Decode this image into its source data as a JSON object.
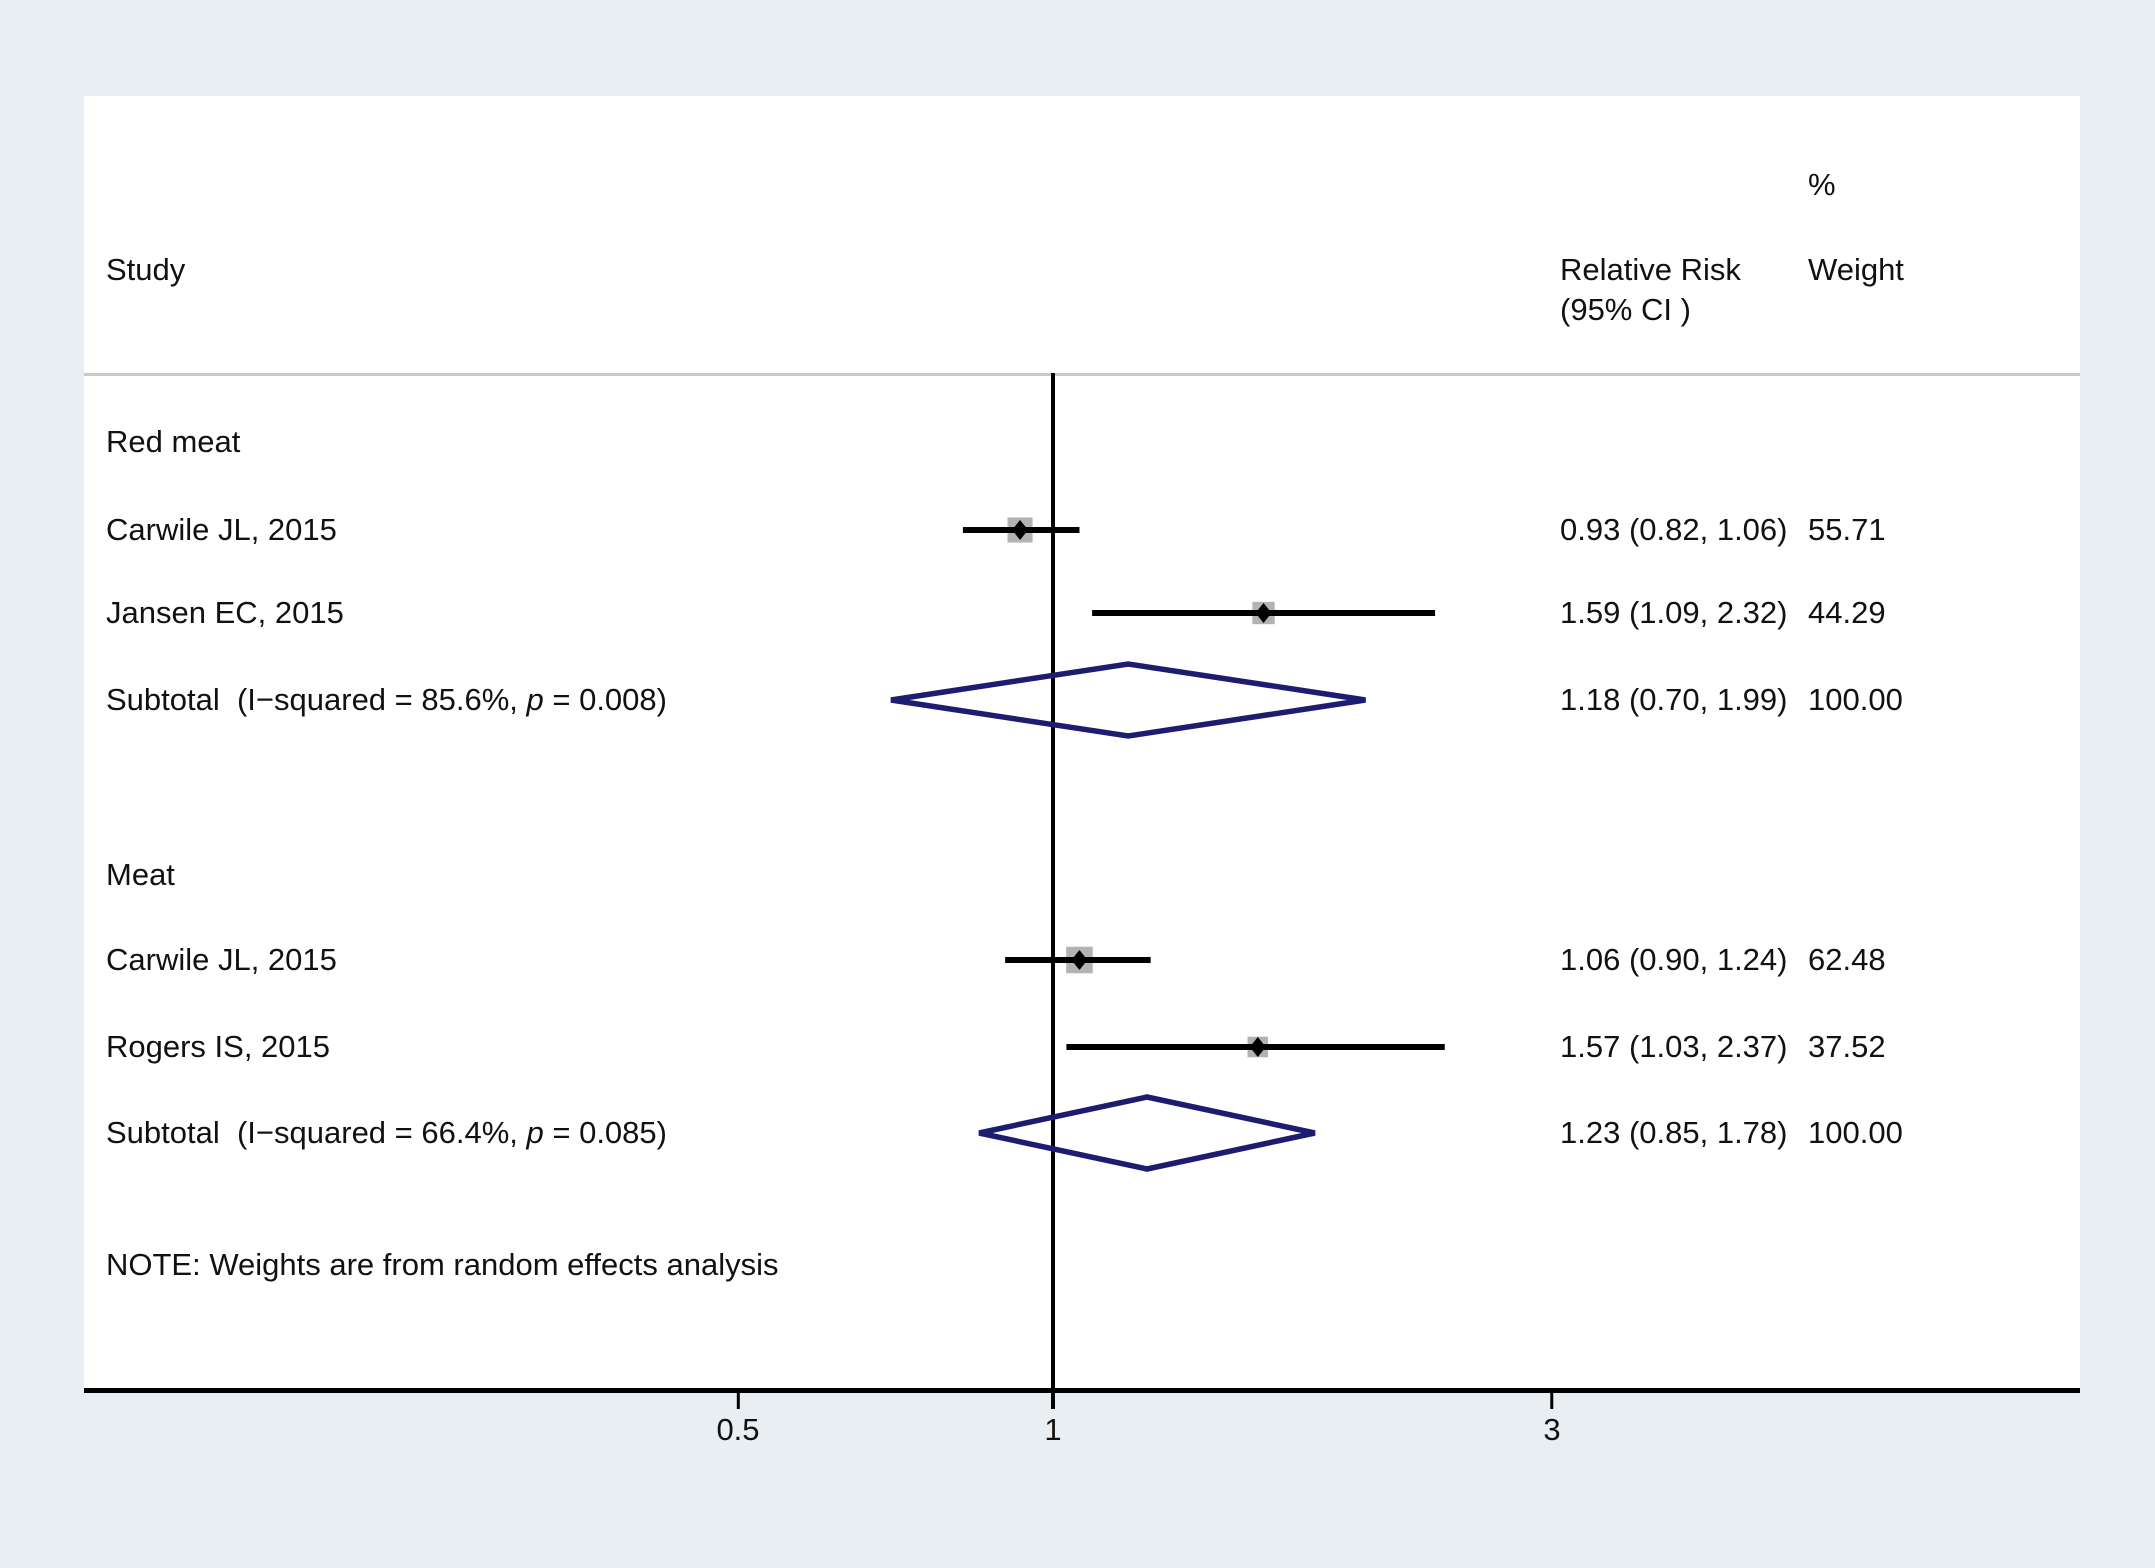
{
  "page": {
    "background": "#e9eef2",
    "panel_background": "#ffffff"
  },
  "colors": {
    "diamond_outline": "#1c1c70",
    "weight_box": "#b3b3b3",
    "point_marker": "#000000",
    "ci_line": "#000000",
    "axis_line": "#000000",
    "header_divider": "#c9c9c9",
    "text": "#111111"
  },
  "header": {
    "study": "Study",
    "percent": "%",
    "effect_line1": "Relative Risk",
    "effect_line2": "(95% CI )",
    "weight": "Weight"
  },
  "note": "NOTE: Weights are from random effects analysis",
  "x_ticks": [
    {
      "label": "0.5"
    },
    {
      "label": "1"
    },
    {
      "label": "3"
    }
  ],
  "chart_data": {
    "type": "forest",
    "x_scale": "log",
    "x_tick_values": [
      0.5,
      1,
      3
    ],
    "null_line_value": 1,
    "effect_measure": "Relative Risk (95% CI)",
    "weights_note": "NOTE: Weights are from random effects analysis",
    "groups": [
      {
        "name": "Red meat",
        "studies": [
          {
            "label": "Carwile JL, 2015",
            "rr_text": "0.93 (0.82, 1.06)",
            "weight_text": "55.71",
            "est": 0.93,
            "lo": 0.82,
            "hi": 1.06,
            "weight": 55.71
          },
          {
            "label": "Jansen EC, 2015",
            "rr_text": "1.59 (1.09, 2.32)",
            "weight_text": "44.29",
            "est": 1.59,
            "lo": 1.09,
            "hi": 2.32,
            "weight": 44.29
          }
        ],
        "subtotal": {
          "prefix": "Subtotal  (I−squared = 85.6%, ",
          "p_label": "p",
          "suffix": " = 0.008)",
          "rr_text": "1.18 (0.70, 1.99)",
          "weight_text": "100.00",
          "est": 1.18,
          "lo": 0.7,
          "hi": 1.99
        }
      },
      {
        "name": "Meat",
        "studies": [
          {
            "label": "Carwile JL, 2015",
            "rr_text": "1.06 (0.90, 1.24)",
            "weight_text": "62.48",
            "est": 1.06,
            "lo": 0.9,
            "hi": 1.24,
            "weight": 62.48
          },
          {
            "label": "Rogers IS, 2015",
            "rr_text": "1.57 (1.03, 2.37)",
            "weight_text": "37.52",
            "est": 1.57,
            "lo": 1.03,
            "hi": 2.37,
            "weight": 37.52
          }
        ],
        "subtotal": {
          "prefix": "Subtotal  (I−squared = 66.4%, ",
          "p_label": "p",
          "suffix": " = 0.085)",
          "rr_text": "1.23 (0.85, 1.78)",
          "weight_text": "100.00",
          "est": 1.23,
          "lo": 0.85,
          "hi": 1.78
        }
      }
    ]
  }
}
